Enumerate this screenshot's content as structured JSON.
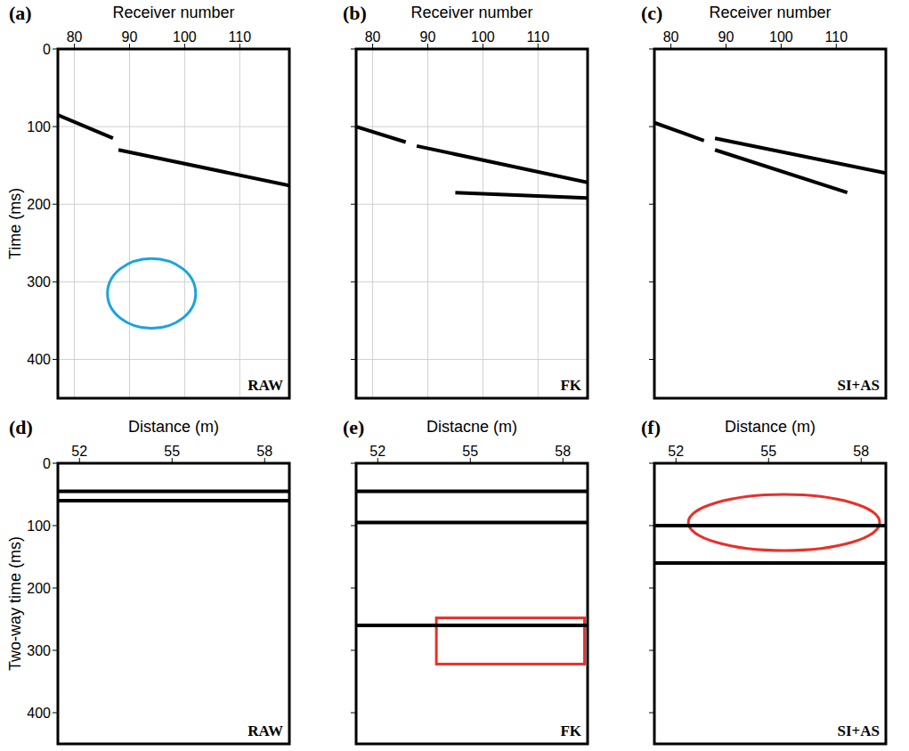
{
  "chart_data": [
    {
      "type": "line",
      "panel_label": "(a)",
      "label": "RAW",
      "x_label": "Receiver number",
      "y_label": "Time (ms)",
      "xlim": [
        77,
        119
      ],
      "xticks": [
        80,
        90,
        100,
        110
      ],
      "ylim": [
        0,
        450
      ],
      "yticks": [
        0,
        100,
        200,
        300,
        400
      ],
      "grid": true,
      "tick_labels": true,
      "series": [
        {
          "color": "#000000",
          "x": [
            77,
            87
          ],
          "values": [
            85,
            115
          ]
        },
        {
          "color": "#000000",
          "x": [
            88,
            119
          ],
          "values": [
            130,
            176
          ]
        }
      ],
      "annotations": [
        {
          "shape": "ellipse",
          "color": "#1aa3e0",
          "x": [
            86,
            102
          ],
          "y": [
            270,
            360
          ]
        }
      ]
    },
    {
      "type": "line",
      "panel_label": "(b)",
      "label": "FK",
      "x_label": "Receiver number",
      "y_label": "",
      "xlim": [
        77,
        119
      ],
      "xticks": [
        80,
        90,
        100,
        110
      ],
      "ylim": [
        0,
        450
      ],
      "yticks": [
        0,
        100,
        200,
        300,
        400
      ],
      "grid": true,
      "tick_labels": "x",
      "series": [
        {
          "color": "#000000",
          "x": [
            77,
            86
          ],
          "values": [
            100,
            120
          ]
        },
        {
          "color": "#000000",
          "x": [
            88,
            119
          ],
          "values": [
            125,
            172
          ]
        },
        {
          "color": "#000000",
          "x": [
            95,
            119
          ],
          "values": [
            185,
            192
          ]
        }
      ],
      "annotations": []
    },
    {
      "type": "line",
      "panel_label": "(c)",
      "label": "SI+AS",
      "x_label": "Receiver number",
      "y_label": "",
      "xlim": [
        77,
        119
      ],
      "xticks": [
        80,
        90,
        100,
        110
      ],
      "ylim": [
        0,
        450
      ],
      "yticks": [
        0,
        100,
        200,
        300,
        400
      ],
      "grid": false,
      "tick_labels": "x",
      "series": [
        {
          "color": "#000000",
          "x": [
            77,
            86
          ],
          "values": [
            95,
            118
          ]
        },
        {
          "color": "#000000",
          "x": [
            88,
            119
          ],
          "values": [
            115,
            160
          ]
        },
        {
          "color": "#000000",
          "x": [
            88,
            112
          ],
          "values": [
            130,
            185
          ]
        }
      ],
      "annotations": []
    },
    {
      "type": "line",
      "panel_label": "(d)",
      "label": "RAW",
      "x_label": "Distance (m)",
      "y_label": "Two-way time (ms)",
      "xlim": [
        51.3,
        58.8
      ],
      "xticks": [
        52,
        55,
        58
      ],
      "ylim": [
        0,
        450
      ],
      "yticks": [
        0,
        100,
        200,
        300,
        400
      ],
      "grid": false,
      "tick_labels": true,
      "series": [
        {
          "color": "#000000",
          "x": [
            51.3,
            58.8
          ],
          "values": [
            45,
            45
          ]
        },
        {
          "color": "#000000",
          "x": [
            51.3,
            58.8
          ],
          "values": [
            60,
            60
          ]
        }
      ],
      "annotations": []
    },
    {
      "type": "line",
      "panel_label": "(e)",
      "label": "FK",
      "x_label": "Distacne (m)",
      "y_label": "",
      "xlim": [
        51.3,
        58.8
      ],
      "xticks": [
        52,
        55,
        58
      ],
      "ylim": [
        0,
        450
      ],
      "yticks": [
        0,
        100,
        200,
        300,
        400
      ],
      "grid": false,
      "tick_labels": "x",
      "series": [
        {
          "color": "#000000",
          "x": [
            51.3,
            58.8
          ],
          "values": [
            45,
            45
          ]
        },
        {
          "color": "#000000",
          "x": [
            51.3,
            58.8
          ],
          "values": [
            95,
            95
          ]
        },
        {
          "color": "#000000",
          "x": [
            51.3,
            58.8
          ],
          "values": [
            260,
            260
          ]
        }
      ],
      "annotations": [
        {
          "shape": "rectangle",
          "color": "#e8302a",
          "x": [
            53.9,
            58.7
          ],
          "y": [
            248,
            322
          ]
        }
      ]
    },
    {
      "type": "line",
      "panel_label": "(f)",
      "label": "SI+AS",
      "x_label": "Distance (m)",
      "y_label": "",
      "xlim": [
        51.3,
        58.8
      ],
      "xticks": [
        52,
        55,
        58
      ],
      "ylim": [
        0,
        450
      ],
      "yticks": [
        0,
        100,
        200,
        300,
        400
      ],
      "grid": false,
      "tick_labels": "x",
      "series": [
        {
          "color": "#000000",
          "x": [
            51.3,
            58.8
          ],
          "values": [
            100,
            100
          ]
        },
        {
          "color": "#000000",
          "x": [
            51.3,
            58.8
          ],
          "values": [
            160,
            160
          ]
        }
      ],
      "annotations": [
        {
          "shape": "ellipse",
          "color": "#e8302a",
          "x": [
            52.4,
            58.6
          ],
          "y": [
            50,
            140
          ]
        }
      ]
    }
  ]
}
